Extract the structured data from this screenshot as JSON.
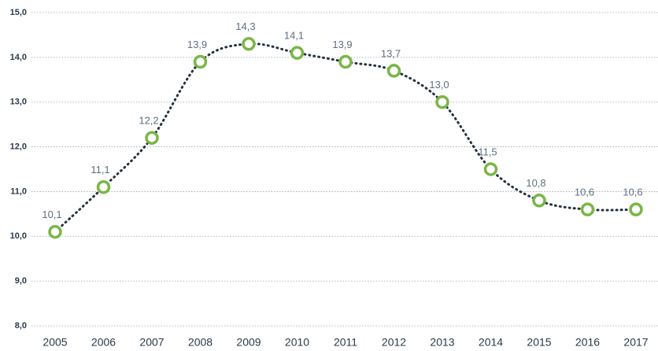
{
  "chart_data": {
    "type": "line",
    "categories": [
      "2005",
      "2006",
      "2007",
      "2008",
      "2009",
      "2010",
      "2011",
      "2012",
      "2013",
      "2014",
      "2015",
      "2016",
      "2017"
    ],
    "series": [
      {
        "color": "#7ab648",
        "values": [
          10.1,
          11.1,
          12.2,
          13.9,
          14.3,
          14.1,
          13.9,
          13.7,
          13.0,
          11.5,
          10.8,
          10.6,
          10.6
        ],
        "value_labels": [
          "10,1",
          "11,1",
          "12,2",
          "13,9",
          "14,3",
          "14,1",
          "13,9",
          "13,7",
          "13,0",
          "11,5",
          "10,8",
          "10,6",
          "10,6"
        ]
      }
    ],
    "ylim": [
      8,
      15
    ],
    "yticks": [
      {
        "value": 8,
        "label": "8,0"
      },
      {
        "value": 9,
        "label": "9,0"
      },
      {
        "value": 10,
        "label": "10,0"
      },
      {
        "value": 11,
        "label": "11,0"
      },
      {
        "value": 12,
        "label": "12,0"
      },
      {
        "value": 13,
        "label": "13,0"
      },
      {
        "value": 14,
        "label": "14,0"
      },
      {
        "value": 15,
        "label": "15,0"
      }
    ],
    "grid": true
  }
}
